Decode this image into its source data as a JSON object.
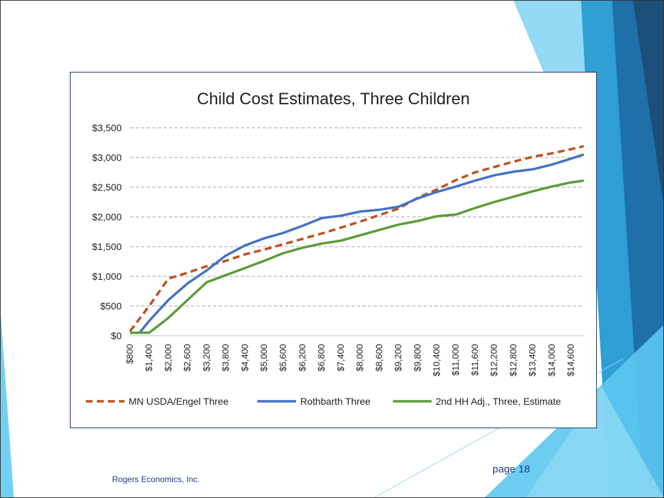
{
  "footer": {
    "company": "Rogers Economics, Inc.",
    "page": "page 18"
  },
  "colors": {
    "deco_light": "#5cc8f0",
    "deco_mid": "#2f9fd6",
    "deco_dark": "#1f6fa8",
    "deco_deep": "#1c4e7a"
  },
  "chart_data": {
    "type": "line",
    "title": "Child Cost Estimates, Three Children",
    "xlabel": "",
    "ylabel": "",
    "ylim": [
      0,
      3500
    ],
    "yticks": [
      0,
      500,
      1000,
      1500,
      2000,
      2500,
      3000,
      3500
    ],
    "ytick_labels": [
      "$0",
      "$500",
      "$1,000",
      "$1,500",
      "$2,000",
      "$2,500",
      "$3,000",
      "$3,500"
    ],
    "xlim": [
      800,
      15000
    ],
    "xticks": [
      800,
      1400,
      2000,
      2600,
      3200,
      3800,
      4400,
      5000,
      5600,
      6200,
      6800,
      7400,
      8000,
      8600,
      9200,
      9800,
      10400,
      11000,
      11600,
      12200,
      12800,
      13400,
      14000,
      14600
    ],
    "xtick_labels": [
      "$800",
      "$1,400",
      "$2,000",
      "$2,600",
      "$3,200",
      "$3,800",
      "$4,400",
      "$5,000",
      "$5,600",
      "$6,200",
      "$6,800",
      "$7,400",
      "$8,000",
      "$8,600",
      "$9,200",
      "$9,800",
      "$10,400",
      "$11,000",
      "$11,600",
      "$12,200",
      "$12,800",
      "$13,400",
      "$14,000",
      "$14,600"
    ],
    "grid": true,
    "legend_position": "bottom",
    "series": [
      {
        "name": "MN USDA/Engel Three",
        "color": "#c0501f",
        "style": "dashed",
        "x": [
          800,
          1400,
          2000,
          2600,
          3200,
          3800,
          4400,
          5000,
          5600,
          6200,
          6800,
          7400,
          8000,
          8600,
          9200,
          9800,
          10400,
          11000,
          11600,
          12200,
          12800,
          13400,
          14000,
          14600,
          15000
        ],
        "values": [
          75,
          500,
          960,
          1060,
          1170,
          1260,
          1370,
          1450,
          1540,
          1630,
          1720,
          1820,
          1920,
          2030,
          2140,
          2320,
          2460,
          2620,
          2750,
          2840,
          2930,
          3010,
          3070,
          3140,
          3190
        ]
      },
      {
        "name": "Rothbarth Three",
        "color": "#4472c4",
        "style": "solid",
        "x": [
          800,
          1100,
          1400,
          2000,
          2600,
          3200,
          3800,
          4400,
          5000,
          5600,
          6200,
          6800,
          7400,
          8000,
          8600,
          9200,
          9800,
          10400,
          11000,
          11600,
          12200,
          12800,
          13400,
          14000,
          14600,
          15000
        ],
        "values": [
          50,
          50,
          250,
          600,
          880,
          1100,
          1350,
          1520,
          1640,
          1730,
          1850,
          1980,
          2020,
          2090,
          2120,
          2170,
          2310,
          2420,
          2510,
          2610,
          2700,
          2760,
          2800,
          2880,
          2980,
          3050
        ]
      },
      {
        "name": "2nd HH Adj., Three, Estimate",
        "color": "#5b9b3a",
        "style": "solid",
        "x": [
          800,
          1400,
          2000,
          2600,
          3200,
          3800,
          4400,
          5000,
          5600,
          6200,
          6800,
          7400,
          8000,
          8600,
          9200,
          9800,
          10400,
          11000,
          11600,
          12200,
          12800,
          13400,
          14000,
          14600,
          15000
        ],
        "values": [
          50,
          50,
          300,
          600,
          900,
          1020,
          1140,
          1260,
          1390,
          1480,
          1550,
          1600,
          1690,
          1780,
          1870,
          1930,
          2010,
          2040,
          2150,
          2250,
          2340,
          2430,
          2510,
          2580,
          2610
        ]
      }
    ]
  }
}
